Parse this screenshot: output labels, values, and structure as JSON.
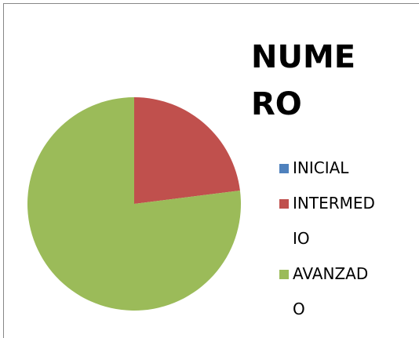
{
  "chart_data": {
    "type": "pie",
    "title": "NUMERO",
    "categories": [
      "INICIAL",
      "INTERMEDIO",
      "AVANZADO"
    ],
    "values": [
      0,
      23,
      77
    ],
    "colors": [
      "#4f81bd",
      "#c0504d",
      "#9bbb59"
    ],
    "legend": "right"
  }
}
